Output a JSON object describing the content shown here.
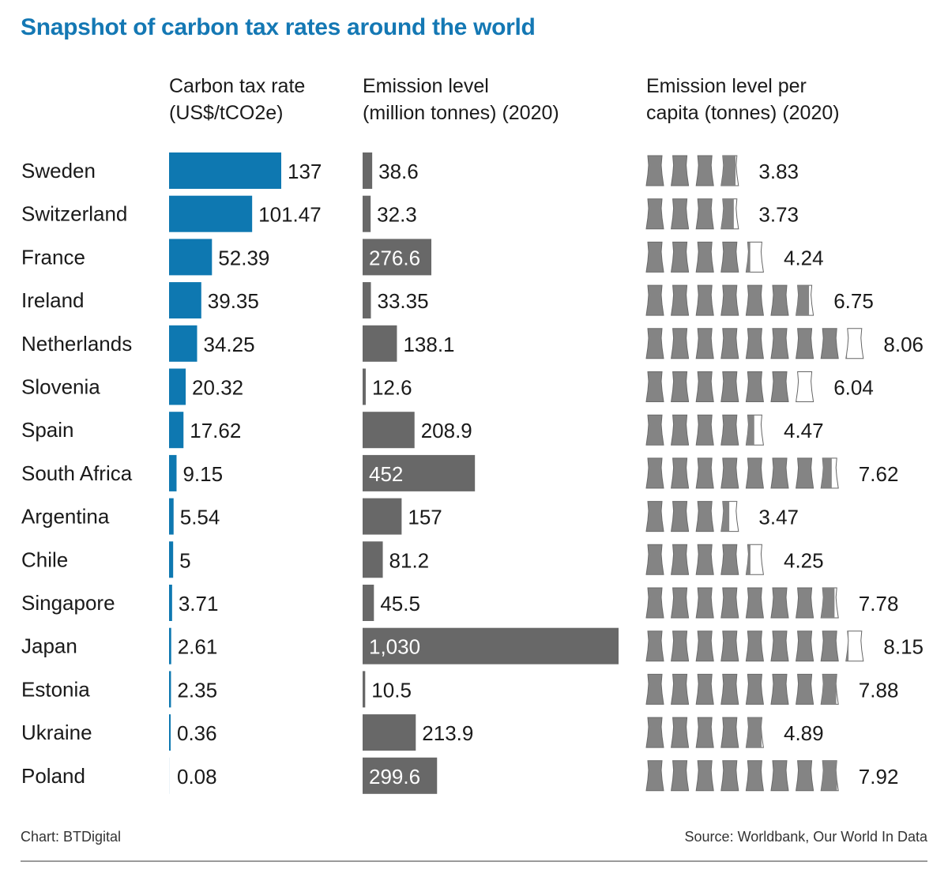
{
  "title": "Snapshot of carbon tax rates around the world",
  "columns": {
    "tax": [
      "Carbon tax rate",
      "(US$/tCO2e)"
    ],
    "emission": [
      "Emission level",
      "(million tonnes) (2020)"
    ],
    "per_capita": [
      "Emission level per",
      "capita (tonnes) (2020)"
    ]
  },
  "footer": {
    "credit": "Chart: BTDigital",
    "source": "Source: Worldbank, Our World In Data"
  },
  "colors": {
    "title": "#1478b4",
    "tax_bar": "#0e78b1",
    "emission_bar": "#686868",
    "icon": "#848484"
  },
  "chart_data": {
    "type": "bar",
    "categories": [
      "Sweden",
      "Switzerland",
      "France",
      "Ireland",
      "Netherlands",
      "Slovenia",
      "Spain",
      "South Africa",
      "Argentina",
      "Chile",
      "Singapore",
      "Japan",
      "Estonia",
      "Ukraine",
      "Poland"
    ],
    "series": [
      {
        "name": "Carbon tax rate (US$/tCO2e)",
        "values": [
          137,
          101.47,
          52.39,
          39.35,
          34.25,
          20.32,
          17.62,
          9.15,
          5.54,
          5,
          3.71,
          2.61,
          2.35,
          0.36,
          0.08
        ],
        "labels": [
          "137",
          "101.47",
          "52.39",
          "39.35",
          "34.25",
          "20.32",
          "17.62",
          "9.15",
          "5.54",
          "5",
          "3.71",
          "2.61",
          "2.35",
          "0.36",
          "0.08"
        ]
      },
      {
        "name": "Emission level (million tonnes) (2020)",
        "values": [
          38.6,
          32.3,
          276.6,
          33.35,
          138.1,
          12.6,
          208.9,
          452,
          157,
          81.2,
          45.5,
          1030,
          10.5,
          213.9,
          299.6
        ],
        "labels": [
          "38.6",
          "32.3",
          "276.6",
          "33.35",
          "138.1",
          "12.6",
          "208.9",
          "452",
          "157",
          "81.2",
          "45.5",
          "1,030",
          "10.5",
          "213.9",
          "299.6"
        ]
      },
      {
        "name": "Emission level per capita (tonnes) (2020)",
        "values": [
          3.83,
          3.73,
          4.24,
          6.75,
          8.06,
          6.04,
          4.47,
          7.62,
          3.47,
          4.25,
          7.78,
          8.15,
          7.88,
          4.89,
          7.92
        ],
        "labels": [
          "3.83",
          "3.73",
          "4.24",
          "6.75",
          "8.06",
          "6.04",
          "4.47",
          "7.62",
          "3.47",
          "4.25",
          "7.78",
          "8.15",
          "7.88",
          "4.89",
          "7.92"
        ]
      }
    ],
    "per_capita_icon": "cooling-tower-icon"
  }
}
